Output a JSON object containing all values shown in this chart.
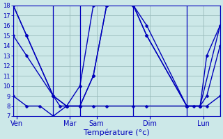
{
  "background_color": "#cce8e8",
  "grid_color": "#99bbbb",
  "line_color": "#0000bb",
  "ylim": [
    7,
    18
  ],
  "yticks": [
    7,
    8,
    9,
    10,
    11,
    12,
    13,
    14,
    15,
    16,
    17,
    18
  ],
  "xlabel": "Température (°c)",
  "day_tick_labels": [
    "Ven",
    "Mar",
    "Sam",
    "Dim",
    "Lun"
  ],
  "day_tick_pos": [
    0.5,
    8.5,
    12.5,
    20.5,
    28.5
  ],
  "vline_positions": [
    0,
    6,
    10,
    18,
    26,
    31
  ],
  "xlim": [
    0,
    31
  ],
  "series": [
    {
      "x": [
        0,
        2,
        6,
        7,
        8,
        10,
        12,
        14,
        18,
        20,
        26,
        27,
        28,
        29,
        31
      ],
      "y": [
        18,
        15,
        9,
        8,
        8,
        8,
        11,
        18,
        18,
        15,
        8,
        8,
        8,
        13,
        16
      ]
    },
    {
      "x": [
        0,
        2,
        6,
        8,
        10,
        12,
        14,
        18,
        20,
        26,
        28,
        29,
        31
      ],
      "y": [
        18,
        15,
        9,
        8,
        10,
        18,
        18,
        18,
        16,
        8,
        8,
        9,
        14
      ]
    },
    {
      "x": [
        0,
        2,
        6,
        8,
        10,
        12,
        14,
        18,
        20,
        26,
        28,
        31
      ],
      "y": [
        15,
        13,
        9,
        8,
        8,
        11,
        18,
        18,
        15,
        8,
        8,
        16
      ]
    },
    {
      "x": [
        0,
        2,
        4,
        6,
        8,
        10,
        12,
        14,
        18,
        20,
        26,
        28,
        29,
        31
      ],
      "y": [
        9,
        8,
        8,
        7,
        8,
        8,
        8,
        8,
        8,
        8,
        8,
        8,
        8,
        9
      ]
    }
  ],
  "marker": "D",
  "marker_size": 2.5,
  "linewidth": 1.0
}
